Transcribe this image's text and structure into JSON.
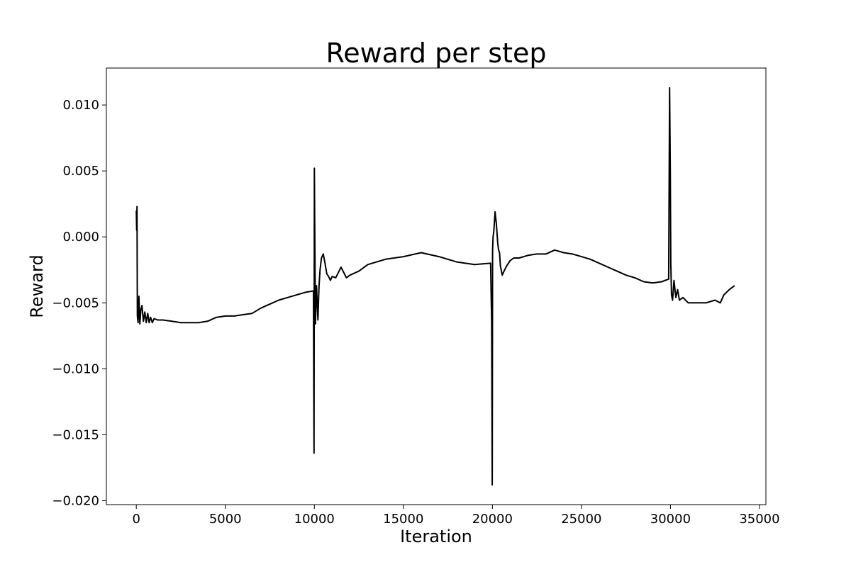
{
  "chart_data": {
    "type": "line",
    "title": "Reward per step",
    "xlabel": "Iteration",
    "ylabel": "Reward",
    "xlim": [
      -1680,
      35360
    ],
    "ylim": [
      -0.0203,
      0.0128
    ],
    "grid": false,
    "legend": "none",
    "xticks": [
      0,
      5000,
      10000,
      15000,
      20000,
      25000,
      30000,
      35000
    ],
    "xtick_labels": [
      "0",
      "5000",
      "10000",
      "15000",
      "20000",
      "25000",
      "30000",
      "35000"
    ],
    "yticks": [
      -0.02,
      -0.015,
      -0.01,
      -0.005,
      0.0,
      0.005,
      0.01
    ],
    "ytick_labels": [
      "−0.020",
      "−0.015",
      "−0.010",
      "−0.005",
      "0.000",
      "0.005",
      "0.010"
    ],
    "series": [
      {
        "color": "#000000",
        "x": [
          0,
          20,
          40,
          60,
          100,
          150,
          200,
          260,
          320,
          400,
          480,
          560,
          640,
          720,
          800,
          900,
          1000,
          1200,
          1500,
          2000,
          2500,
          3000,
          3500,
          4000,
          4500,
          5000,
          5500,
          6000,
          6500,
          7000,
          7500,
          8000,
          8500,
          9000,
          9500,
          9950,
          9980,
          10000,
          10020,
          10060,
          10120,
          10200,
          10260,
          10320,
          10400,
          10500,
          10600,
          10700,
          10800,
          10900,
          11000,
          11200,
          11500,
          11800,
          12000,
          12500,
          13000,
          13500,
          14000,
          15000,
          16000,
          17000,
          18000,
          19000,
          19900,
          19960,
          19990,
          20010,
          20040,
          20080,
          20150,
          20220,
          20300,
          20350,
          20400,
          20450,
          20550,
          20650,
          20800,
          21000,
          21200,
          21500,
          22000,
          22500,
          23000,
          23500,
          24000,
          24500,
          25000,
          25500,
          26000,
          26500,
          27000,
          27500,
          28000,
          28500,
          29000,
          29500,
          29900,
          29950,
          29990,
          30020,
          30060,
          30120,
          30200,
          30300,
          30400,
          30500,
          30700,
          31000,
          31500,
          32000,
          32500,
          32800,
          33000,
          33300,
          33600
        ],
        "y": [
          0.002,
          0.0005,
          0.0023,
          -0.006,
          -0.0065,
          -0.0045,
          -0.0066,
          -0.0055,
          -0.0052,
          -0.0064,
          -0.0057,
          -0.0065,
          -0.0058,
          -0.0065,
          -0.0061,
          -0.0065,
          -0.0062,
          -0.0063,
          -0.0063,
          -0.0064,
          -0.0065,
          -0.0065,
          -0.0065,
          -0.0064,
          -0.0061,
          -0.006,
          -0.006,
          -0.0059,
          -0.0058,
          -0.0054,
          -0.0051,
          -0.0048,
          -0.0046,
          -0.0044,
          -0.0042,
          -0.0041,
          -0.0164,
          0.0052,
          0.001,
          -0.0066,
          -0.0037,
          -0.0063,
          -0.0038,
          -0.0025,
          -0.0016,
          -0.0013,
          -0.002,
          -0.0028,
          -0.003,
          -0.0033,
          -0.003,
          -0.0031,
          -0.0023,
          -0.0031,
          -0.0029,
          -0.0026,
          -0.0021,
          -0.0019,
          -0.0017,
          -0.0015,
          -0.0012,
          -0.0015,
          -0.0019,
          -0.0021,
          -0.002,
          -0.0065,
          -0.0188,
          -0.001,
          0.0,
          0.0004,
          0.0019,
          0.001,
          -0.0005,
          -0.001,
          -0.0012,
          -0.0022,
          -0.0029,
          -0.0026,
          -0.0022,
          -0.0018,
          -0.0016,
          -0.0016,
          -0.0014,
          -0.0013,
          -0.0013,
          -0.001,
          -0.0012,
          -0.0013,
          -0.0015,
          -0.0017,
          -0.002,
          -0.0023,
          -0.0026,
          -0.0029,
          -0.0031,
          -0.0034,
          -0.0035,
          -0.0034,
          -0.0032,
          0.0113,
          0.005,
          -0.002,
          -0.0044,
          -0.0048,
          -0.0033,
          -0.0046,
          -0.004,
          -0.0048,
          -0.0046,
          -0.005,
          -0.005,
          -0.005,
          -0.0048,
          -0.005,
          -0.0044,
          -0.004,
          -0.0037
        ]
      }
    ]
  }
}
